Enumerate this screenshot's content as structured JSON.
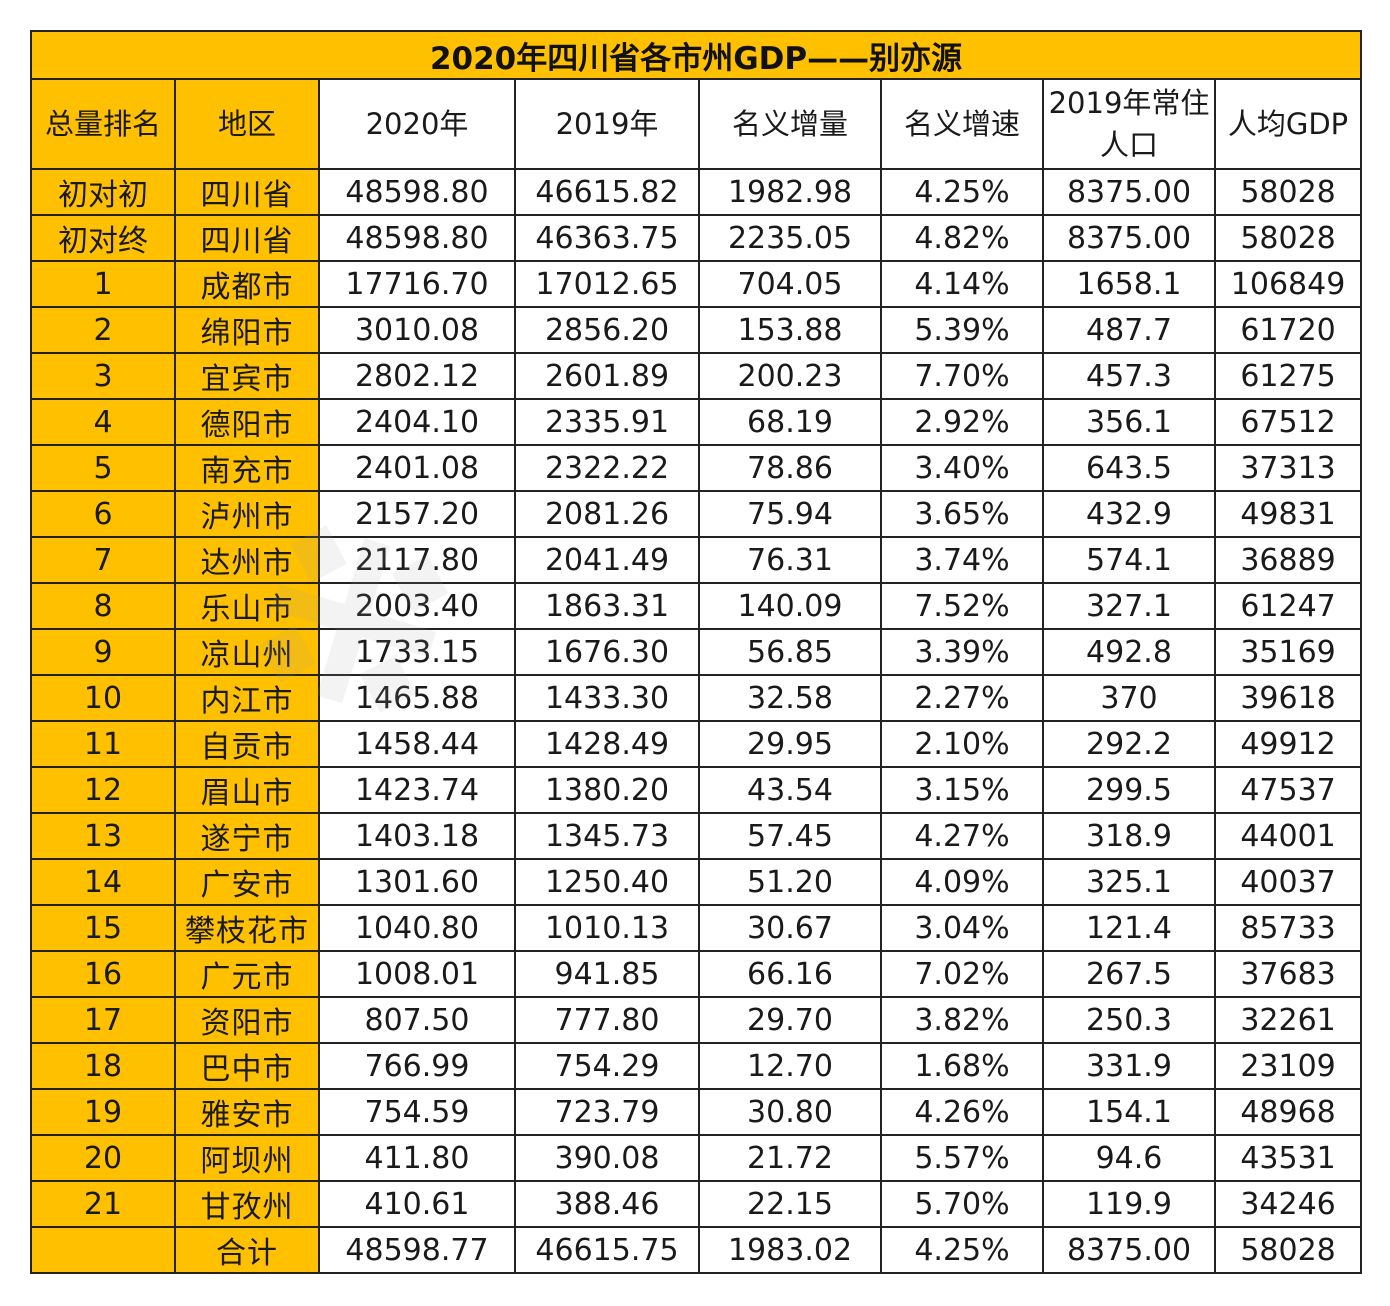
{
  "title": "2020年四川省各市州GDP——别亦源",
  "headers": [
    "总量排名",
    "地区",
    "2020年",
    "2019年",
    "名义增量",
    "名义增速",
    "2019年常住人口",
    "人均GDP"
  ],
  "rows": [
    [
      "初对初",
      "四川省",
      "48598.80",
      "46615.82",
      "1982.98",
      "4.25%",
      "8375.00",
      "58028"
    ],
    [
      "初对终",
      "四川省",
      "48598.80",
      "46363.75",
      "2235.05",
      "4.82%",
      "8375.00",
      "58028"
    ],
    [
      "1",
      "成都市",
      "17716.70",
      "17012.65",
      "704.05",
      "4.14%",
      "1658.1",
      "106849"
    ],
    [
      "2",
      "绵阳市",
      "3010.08",
      "2856.20",
      "153.88",
      "5.39%",
      "487.7",
      "61720"
    ],
    [
      "3",
      "宜宾市",
      "2802.12",
      "2601.89",
      "200.23",
      "7.70%",
      "457.3",
      "61275"
    ],
    [
      "4",
      "德阳市",
      "2404.10",
      "2335.91",
      "68.19",
      "2.92%",
      "356.1",
      "67512"
    ],
    [
      "5",
      "南充市",
      "2401.08",
      "2322.22",
      "78.86",
      "3.40%",
      "643.5",
      "37313"
    ],
    [
      "6",
      "泸州市",
      "2157.20",
      "2081.26",
      "75.94",
      "3.65%",
      "432.9",
      "49831"
    ],
    [
      "7",
      "达州市",
      "2117.80",
      "2041.49",
      "76.31",
      "3.74%",
      "574.1",
      "36889"
    ],
    [
      "8",
      "乐山市",
      "2003.40",
      "1863.31",
      "140.09",
      "7.52%",
      "327.1",
      "61247"
    ],
    [
      "9",
      "凉山州",
      "1733.15",
      "1676.30",
      "56.85",
      "3.39%",
      "492.8",
      "35169"
    ],
    [
      "10",
      "内江市",
      "1465.88",
      "1433.30",
      "32.58",
      "2.27%",
      "370",
      "39618"
    ],
    [
      "11",
      "自贡市",
      "1458.44",
      "1428.49",
      "29.95",
      "2.10%",
      "292.2",
      "49912"
    ],
    [
      "12",
      "眉山市",
      "1423.74",
      "1380.20",
      "43.54",
      "3.15%",
      "299.5",
      "47537"
    ],
    [
      "13",
      "遂宁市",
      "1403.18",
      "1345.73",
      "57.45",
      "4.27%",
      "318.9",
      "44001"
    ],
    [
      "14",
      "广安市",
      "1301.60",
      "1250.40",
      "51.20",
      "4.09%",
      "325.1",
      "40037"
    ],
    [
      "15",
      "攀枝花市",
      "1040.80",
      "1010.13",
      "30.67",
      "3.04%",
      "121.4",
      "85733"
    ],
    [
      "16",
      "广元市",
      "1008.01",
      "941.85",
      "66.16",
      "7.02%",
      "267.5",
      "37683"
    ],
    [
      "17",
      "资阳市",
      "807.50",
      "777.80",
      "29.70",
      "3.82%",
      "250.3",
      "32261"
    ],
    [
      "18",
      "巴中市",
      "766.99",
      "754.29",
      "12.70",
      "1.68%",
      "331.9",
      "23109"
    ],
    [
      "19",
      "雅安市",
      "754.59",
      "723.79",
      "30.80",
      "4.26%",
      "154.1",
      "48968"
    ],
    [
      "20",
      "阿坝州",
      "411.80",
      "390.08",
      "21.72",
      "5.57%",
      "94.6",
      "43531"
    ],
    [
      "21",
      "甘孜州",
      "410.61",
      "388.46",
      "22.15",
      "5.70%",
      "119.9",
      "34246"
    ],
    [
      "",
      "合计",
      "48598.77",
      "46615.75",
      "1983.02",
      "4.25%",
      "8375.00",
      "58028"
    ]
  ],
  "colors": {
    "gold": "#FFC000",
    "border": "#222222",
    "text": "#1a1a1a"
  }
}
